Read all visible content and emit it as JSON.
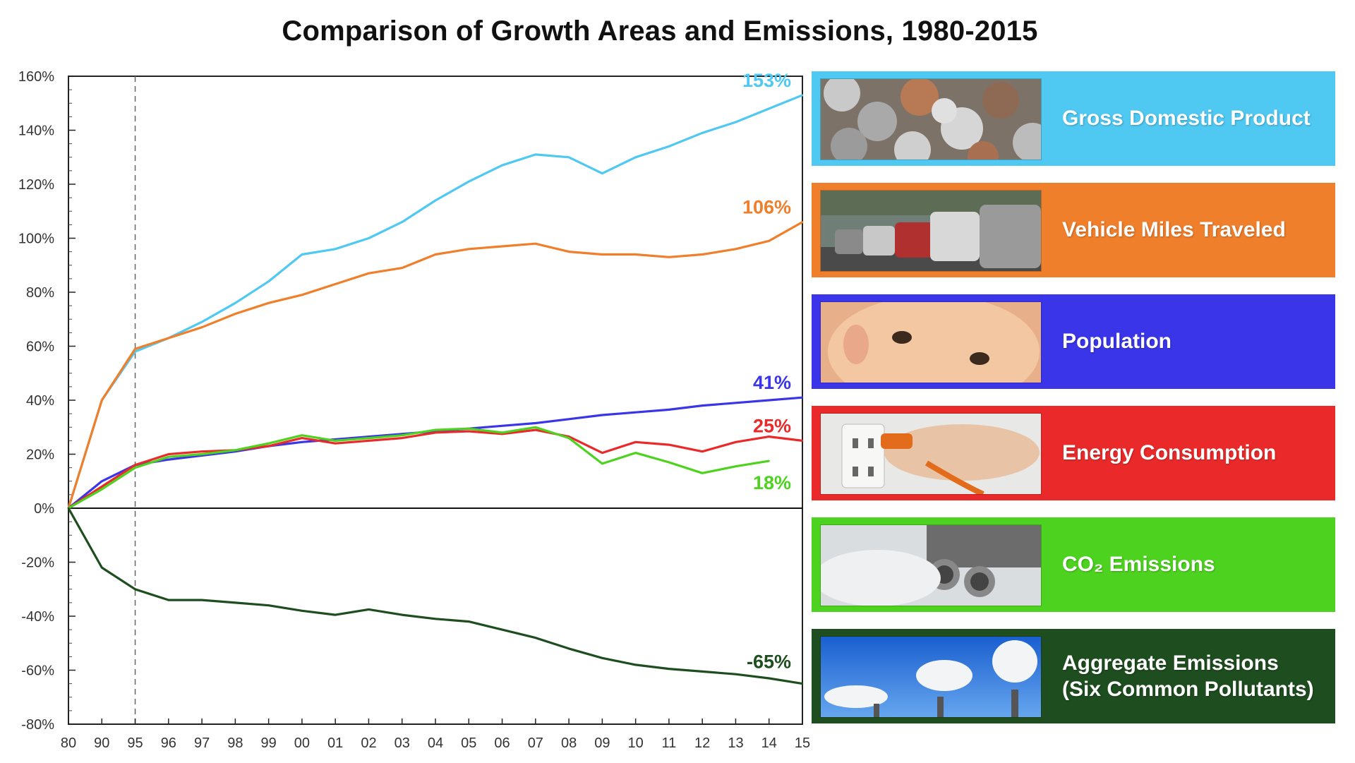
{
  "chart_data": {
    "type": "line",
    "title": "Comparison of Growth Areas and Emissions, 1980-2015",
    "xlabel": "",
    "ylabel": "",
    "ylim": [
      -80,
      160
    ],
    "y_ticks": [
      160,
      140,
      120,
      100,
      80,
      60,
      40,
      20,
      0,
      -20,
      -40,
      -60,
      -80
    ],
    "y_tick_labels": [
      "160%",
      "140%",
      "120%",
      "100%",
      "80%",
      "60%",
      "40%",
      "20%",
      "0%",
      "-20%",
      "-40%",
      "-60%",
      "-80%"
    ],
    "x": [
      1980,
      1990,
      1995,
      1996,
      1997,
      1998,
      1999,
      2000,
      2001,
      2002,
      2003,
      2004,
      2005,
      2006,
      2007,
      2008,
      2009,
      2010,
      2011,
      2012,
      2013,
      2014,
      2015
    ],
    "x_tick_labels": [
      "80",
      "90",
      "95",
      "96",
      "97",
      "98",
      "99",
      "00",
      "01",
      "02",
      "03",
      "04",
      "05",
      "06",
      "07",
      "08",
      "09",
      "10",
      "11",
      "12",
      "13",
      "14",
      "15"
    ],
    "reference_line_x": 1995,
    "grid": false,
    "legend_position": "right",
    "series": [
      {
        "name": "Gross Domestic Product",
        "color": "#4fc8f2",
        "end_label": "153%",
        "values": [
          0,
          40,
          58,
          63,
          69,
          76,
          84,
          94,
          96,
          100,
          106,
          114,
          121,
          127,
          131,
          130,
          124,
          130,
          134,
          139,
          143,
          148,
          153
        ]
      },
      {
        "name": "Vehicle Miles Traveled",
        "color": "#f07f2c",
        "end_label": "106%",
        "values": [
          0,
          40,
          59,
          63,
          67,
          72,
          76,
          79,
          83,
          87,
          89,
          94,
          96,
          97,
          98,
          95,
          94,
          94,
          93,
          94,
          96,
          99,
          106
        ]
      },
      {
        "name": "Population",
        "color": "#3b35e9",
        "end_label": "41%",
        "values": [
          0,
          10,
          16,
          18,
          19.5,
          21,
          23,
          24.5,
          25.5,
          26.5,
          27.5,
          28.5,
          29.5,
          30.5,
          31.5,
          33,
          34.5,
          35.5,
          36.5,
          38,
          39,
          40,
          41
        ]
      },
      {
        "name": "Energy Consumption",
        "color": "#ea2a2a",
        "end_label": "25%",
        "values": [
          0,
          8,
          16,
          20,
          21,
          21.5,
          23,
          26,
          24,
          25,
          26,
          28,
          28.5,
          27.5,
          29,
          26.5,
          20.5,
          24.5,
          23.5,
          21,
          24.5,
          26.5,
          25
        ]
      },
      {
        "name": "CO₂ Emissions",
        "color": "#4dd31f",
        "end_label": "18%",
        "values": [
          0,
          7,
          15,
          19,
          20,
          21.5,
          24,
          27,
          25,
          26,
          27,
          29,
          29.5,
          28,
          30,
          26,
          16.5,
          20.5,
          17,
          13,
          15.5,
          17.5,
          null
        ]
      },
      {
        "name": "Aggregate Emissions (Six Common Pollutants)",
        "color": "#1e4d1f",
        "end_label": "-65%",
        "values": [
          0,
          -22,
          -30,
          -34,
          -34,
          -35,
          -36,
          -38,
          -39.5,
          -37.5,
          -39.5,
          -41,
          -42,
          -45,
          -48,
          -52,
          -55.5,
          -58,
          -59.5,
          -60.5,
          -61.5,
          -63,
          -65
        ]
      }
    ]
  },
  "legend": [
    {
      "label": "Gross Domestic Product",
      "color": "#4fc8f2",
      "icon": "coins-photo"
    },
    {
      "label": "Vehicle Miles Traveled",
      "color": "#f07f2c",
      "icon": "traffic-photo"
    },
    {
      "label": "Population",
      "color": "#3b35e9",
      "icon": "baby-photo"
    },
    {
      "label": "Energy Consumption",
      "color": "#ea2a2a",
      "icon": "plug-photo"
    },
    {
      "label": "CO₂ Emissions",
      "color": "#4dd31f",
      "icon": "exhaust-photo"
    },
    {
      "label": "Aggregate Emissions\n(Six Common Pollutants)",
      "color": "#1e4d1f",
      "icon": "smokestacks-photo"
    }
  ]
}
